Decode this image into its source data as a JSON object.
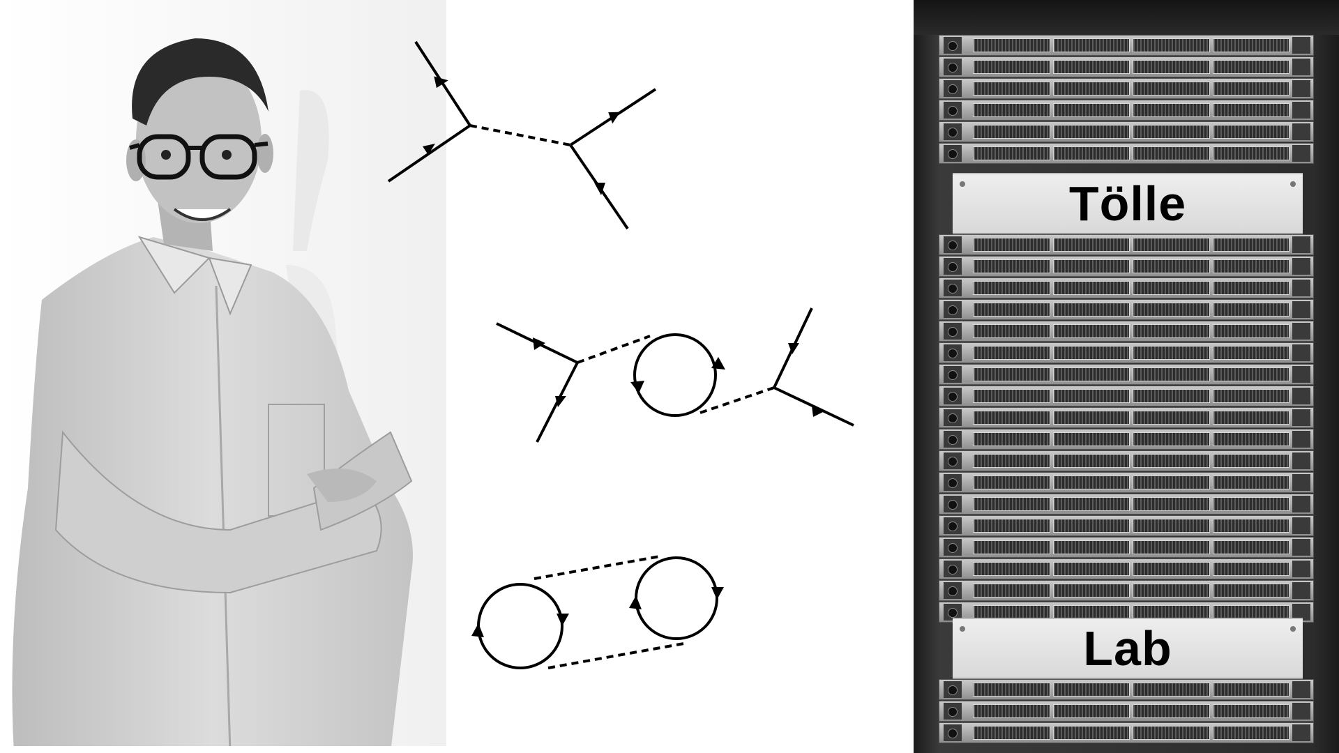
{
  "rack_labels": {
    "top": "Tölle",
    "bottom": "Lab"
  },
  "colors": {
    "background": "#ffffff",
    "line": "#000000",
    "rack_dark": "#2a2a2a",
    "plate": "#e6e6e6"
  },
  "icons": {
    "person": "person-photo",
    "rack": "server-rack-photo",
    "diagrams": "feynman-diagram"
  }
}
